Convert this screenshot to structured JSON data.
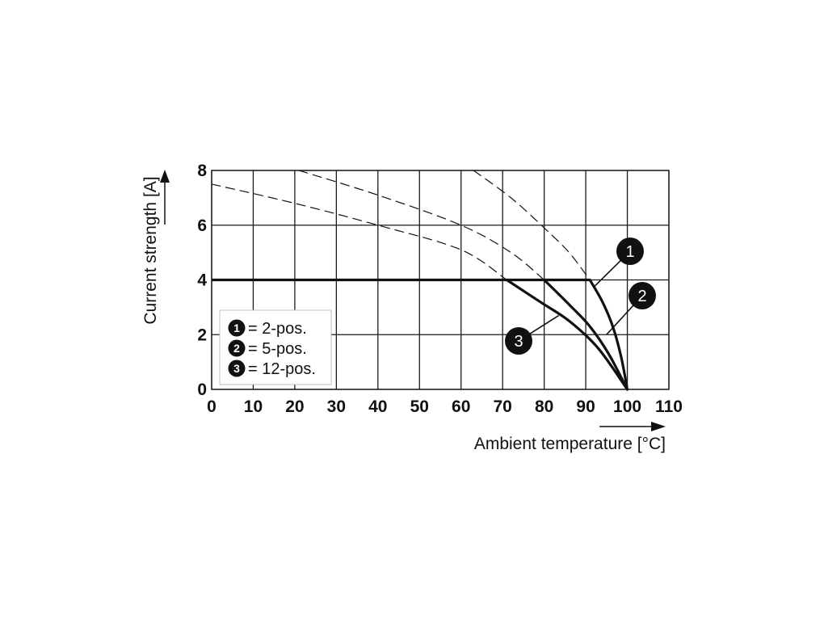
{
  "chart_data": {
    "type": "line",
    "xlabel": "Ambient temperature [°C]",
    "ylabel": "Current strength [A]",
    "xlim": [
      0,
      110
    ],
    "ylim": [
      0,
      8
    ],
    "x_ticks": [
      "0",
      "10",
      "20",
      "30",
      "40",
      "50",
      "60",
      "70",
      "80",
      "90",
      "100",
      "110"
    ],
    "y_ticks": [
      "0",
      "2",
      "4",
      "6",
      "8"
    ],
    "grid": true,
    "legend_position": "bottom-left",
    "legend": [
      {
        "marker": "1",
        "text": "= 2-pos."
      },
      {
        "marker": "2",
        "text": "= 5-pos."
      },
      {
        "marker": "3",
        "text": "= 12-pos."
      }
    ],
    "plateau": {
      "x": [
        0,
        91
      ],
      "y": [
        4,
        4
      ]
    },
    "series": [
      {
        "marker": "1",
        "style": "solid",
        "points": [
          [
            91,
            4.0
          ],
          [
            94,
            3.2
          ],
          [
            96.5,
            2.3
          ],
          [
            98.5,
            1.2
          ],
          [
            100,
            0
          ]
        ]
      },
      {
        "marker": "2",
        "style": "solid",
        "points": [
          [
            80,
            4.0
          ],
          [
            86,
            3.1
          ],
          [
            91,
            2.3
          ],
          [
            95.5,
            1.3
          ],
          [
            100,
            0
          ]
        ]
      },
      {
        "marker": "3",
        "style": "solid",
        "points": [
          [
            71,
            4.0
          ],
          [
            79,
            3.2
          ],
          [
            86,
            2.5
          ],
          [
            93,
            1.5
          ],
          [
            100,
            0
          ]
        ]
      },
      {
        "marker": "",
        "style": "dashed",
        "points": [
          [
            0,
            7.5
          ],
          [
            20,
            6.8
          ],
          [
            40,
            6.0
          ],
          [
            60,
            5.1
          ],
          [
            71,
            4.0
          ]
        ]
      },
      {
        "marker": "",
        "style": "dashed",
        "points": [
          [
            21,
            8.0
          ],
          [
            40,
            7.1
          ],
          [
            60,
            6.0
          ],
          [
            72,
            5.0
          ],
          [
            80,
            4.0
          ]
        ]
      },
      {
        "marker": "",
        "style": "dashed",
        "points": [
          [
            63,
            8.0
          ],
          [
            72,
            7.0
          ],
          [
            80,
            5.9
          ],
          [
            86,
            5.0
          ],
          [
            91,
            4.0
          ]
        ]
      }
    ],
    "callouts": [
      {
        "label": "1",
        "target": [
          92,
          3.75
        ]
      },
      {
        "label": "2",
        "target": [
          95,
          2.0
        ]
      },
      {
        "label": "3",
        "target": [
          83.5,
          2.7
        ]
      }
    ]
  }
}
